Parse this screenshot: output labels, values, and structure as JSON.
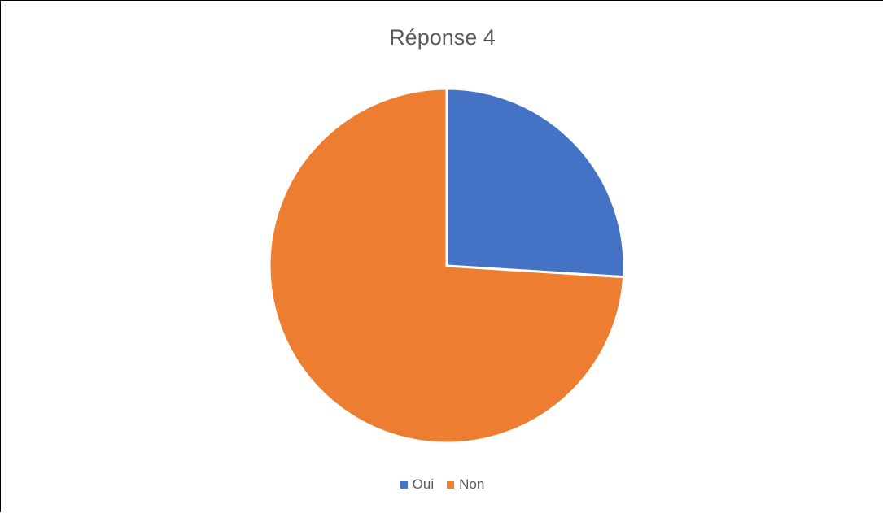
{
  "chart_data": {
    "type": "pie",
    "title": "Réponse 4",
    "categories": [
      "Oui",
      "Non"
    ],
    "values": [
      26,
      74
    ],
    "colors": [
      "#4472c4",
      "#ed7d31"
    ],
    "legend_position": "bottom",
    "start_angle_deg": 0,
    "direction": "clockwise"
  }
}
